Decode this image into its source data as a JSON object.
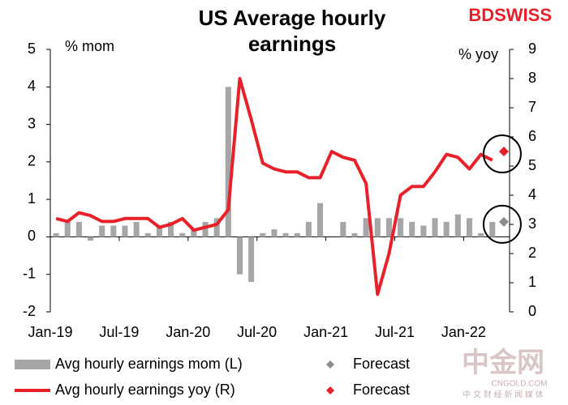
{
  "chart_data": {
    "type": "bar_line",
    "title": "US Average hourly earnings",
    "logo": "BDSWISS",
    "watermark": [
      "中金网",
      "CNGOLD.COM",
      "中 文 财 经 新 闻 媒 体"
    ],
    "ylabel": "% mom",
    "y2label": "% yoy",
    "categories": [
      "Jan-19",
      null,
      null,
      null,
      null,
      null,
      "Jul-19",
      null,
      null,
      null,
      null,
      null,
      "Jan-20",
      null,
      null,
      null,
      null,
      null,
      "Jul-20",
      null,
      null,
      null,
      null,
      null,
      "Jan-21",
      null,
      null,
      null,
      null,
      null,
      "Jul-21",
      null,
      null,
      null,
      null,
      null,
      "Jan-22",
      null,
      null,
      null
    ],
    "ylim": [
      -2,
      5
    ],
    "yticks": [
      -2,
      -1,
      0,
      1,
      2,
      3,
      4,
      5
    ],
    "y2lim": [
      0,
      9
    ],
    "y2ticks": [
      0,
      1,
      2,
      3,
      4,
      5,
      6,
      7,
      8,
      9
    ],
    "series": [
      {
        "name": "Avg hourly earnings mom (L)",
        "kind": "bar",
        "color": "#a6a6a6",
        "values": [
          0.1,
          0.4,
          0.4,
          -0.1,
          0.3,
          0.3,
          0.3,
          0.4,
          0.1,
          0.3,
          0.4,
          0.1,
          0.2,
          0.4,
          0.5,
          4.0,
          -1.0,
          -1.2,
          0.1,
          0.2,
          0.1,
          0.1,
          0.4,
          0.9,
          0.0,
          0.4,
          0.1,
          0.5,
          0.5,
          0.5,
          0.5,
          0.4,
          0.3,
          0.5,
          0.4,
          0.6,
          0.5,
          0.1,
          0.4,
          null
        ]
      },
      {
        "name": "Avg hourly earnings yoy (R)",
        "kind": "line",
        "axis": "y2",
        "color": "#e8202a",
        "values": [
          3.2,
          3.1,
          3.4,
          3.3,
          3.1,
          3.1,
          3.2,
          3.2,
          3.2,
          2.9,
          3.0,
          3.2,
          2.8,
          2.9,
          3.0,
          3.5,
          8.0,
          6.6,
          5.1,
          4.9,
          4.8,
          4.8,
          4.6,
          4.6,
          5.5,
          5.3,
          5.2,
          4.4,
          0.6,
          2.0,
          4.0,
          4.3,
          4.3,
          4.8,
          5.4,
          5.3,
          4.9,
          5.4,
          5.2,
          null
        ]
      },
      {
        "name": "Forecast",
        "kind": "scatter",
        "color": "#8c8c8c",
        "values": [
          null,
          null,
          null,
          null,
          null,
          null,
          null,
          null,
          null,
          null,
          null,
          null,
          null,
          null,
          null,
          null,
          null,
          null,
          null,
          null,
          null,
          null,
          null,
          null,
          null,
          null,
          null,
          null,
          null,
          null,
          null,
          null,
          null,
          null,
          null,
          null,
          null,
          null,
          null,
          0.4
        ]
      },
      {
        "name": "Forecast",
        "kind": "scatter",
        "axis": "y2",
        "color": "#e8202a",
        "values": [
          null,
          null,
          null,
          null,
          null,
          null,
          null,
          null,
          null,
          null,
          null,
          null,
          null,
          null,
          null,
          null,
          null,
          null,
          null,
          null,
          null,
          null,
          null,
          null,
          null,
          null,
          null,
          null,
          null,
          null,
          null,
          null,
          null,
          null,
          null,
          null,
          null,
          null,
          null,
          5.5
        ]
      }
    ]
  }
}
